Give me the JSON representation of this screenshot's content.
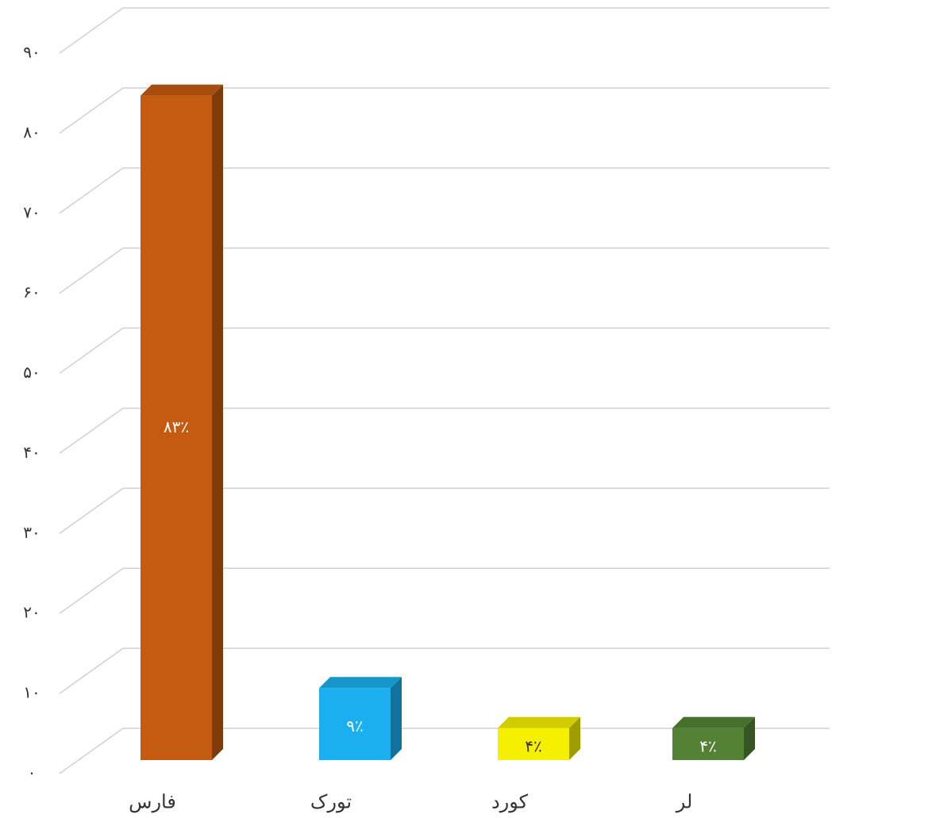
{
  "chart_data": {
    "type": "bar",
    "categories": [
      "فارس",
      "تورک",
      "کورد",
      "لر"
    ],
    "values": [
      83,
      9,
      4,
      4
    ],
    "value_labels": [
      "۸۳٪",
      "۹٪",
      "۴٪",
      "۴٪"
    ],
    "colors": [
      "#c55a11",
      "#1ab0ef",
      "#f5f000",
      "#548235"
    ],
    "ylim": [
      0,
      90
    ],
    "yticks": [
      {
        "value": 0,
        "label": "۰"
      },
      {
        "value": 10,
        "label": "۱۰"
      },
      {
        "value": 20,
        "label": "۲۰"
      },
      {
        "value": 30,
        "label": "۳۰"
      },
      {
        "value": 40,
        "label": "۴۰"
      },
      {
        "value": 50,
        "label": "۵۰"
      },
      {
        "value": 60,
        "label": "۶۰"
      },
      {
        "value": 70,
        "label": "۷۰"
      },
      {
        "value": 80,
        "label": "۸۰"
      },
      {
        "value": 90,
        "label": "۹۰"
      }
    ],
    "grid": true
  }
}
